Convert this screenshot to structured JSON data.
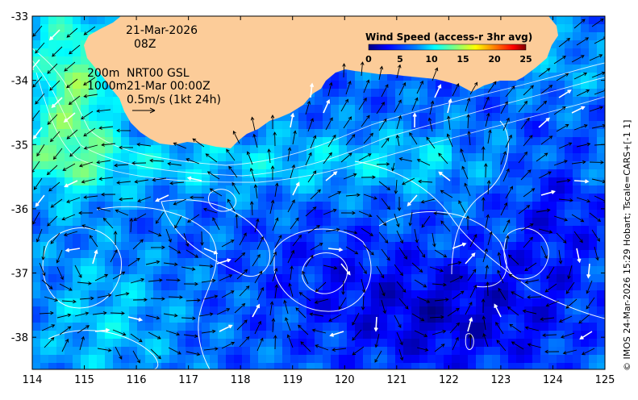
{
  "annotations": {
    "date": "21-Mar-2026",
    "hour": "08Z",
    "contour_200": "200m",
    "contour_1000": "1000m",
    "product": "NRT00 GSL",
    "product_time": "21-Mar 00:00Z",
    "scale_vector": "0.5m/s (1kt 24h)"
  },
  "colorbar": {
    "title": "Wind Speed (access-r 3hr avg)",
    "ticks": [
      "0",
      "5",
      "10",
      "15",
      "20",
      "25"
    ],
    "range": [
      0,
      25
    ],
    "colors": [
      "#00007f",
      "#0000ff",
      "#007fff",
      "#00ffff",
      "#7fff7f",
      "#ffff00",
      "#ff7f00",
      "#ff0000",
      "#7f0000"
    ]
  },
  "credit": "© IMOS 24-Mar-2026 15:29 Hobart; Tscale=CARS+[-1 1]",
  "axes": {
    "lon_range": [
      114,
      125
    ],
    "lat_range": [
      -38.5,
      -33
    ],
    "x_ticks": [
      "114",
      "115",
      "116",
      "117",
      "118",
      "119",
      "120",
      "121",
      "122",
      "123",
      "124",
      "125"
    ],
    "y_ticks": [
      "-33",
      "-34",
      "-35",
      "-36",
      "-37",
      "-38"
    ]
  },
  "colors": {
    "land": "#fccc99",
    "contour": "#ffffff",
    "arrow_dark": "#000000",
    "arrow_light": "#ffffff"
  }
}
